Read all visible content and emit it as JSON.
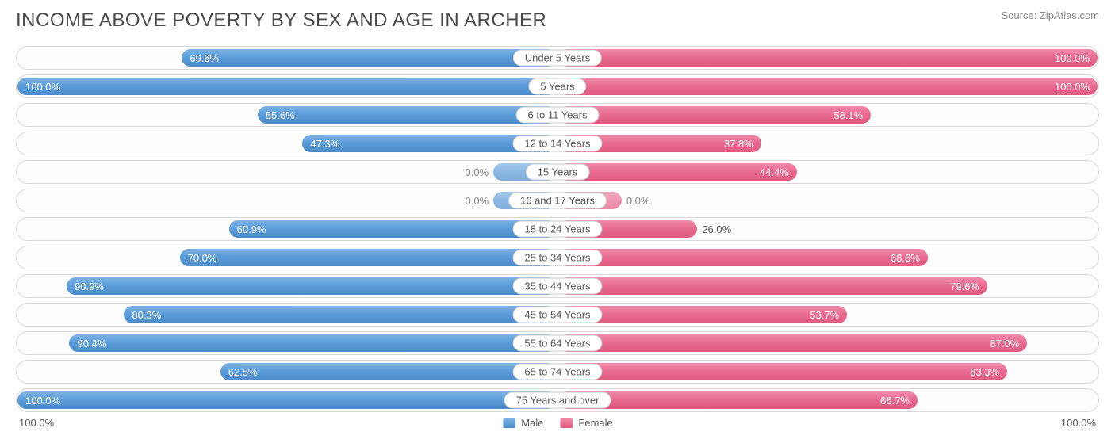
{
  "title": "INCOME ABOVE POVERTY BY SEX AND AGE IN ARCHER",
  "source": "Source: ZipAtlas.com",
  "chart": {
    "type": "diverging-bar",
    "male_color": "#5a9bd8",
    "female_color": "#e86a8f",
    "background": "#ffffff",
    "row_border": "#d8d8d8",
    "text_color": "#555555",
    "title_color": "#4a4a4a",
    "min_bar_pct": 12,
    "label_inside_threshold": 30,
    "axis_left": "100.0%",
    "axis_right": "100.0%",
    "legend": {
      "male": "Male",
      "female": "Female"
    },
    "rows": [
      {
        "category": "Under 5 Years",
        "male": 69.6,
        "female": 100.0
      },
      {
        "category": "5 Years",
        "male": 100.0,
        "female": 100.0
      },
      {
        "category": "6 to 11 Years",
        "male": 55.6,
        "female": 58.1
      },
      {
        "category": "12 to 14 Years",
        "male": 47.3,
        "female": 37.8
      },
      {
        "category": "15 Years",
        "male": 0.0,
        "female": 44.4
      },
      {
        "category": "16 and 17 Years",
        "male": 0.0,
        "female": 0.0
      },
      {
        "category": "18 to 24 Years",
        "male": 60.9,
        "female": 26.0
      },
      {
        "category": "25 to 34 Years",
        "male": 70.0,
        "female": 68.6
      },
      {
        "category": "35 to 44 Years",
        "male": 90.9,
        "female": 79.6
      },
      {
        "category": "45 to 54 Years",
        "male": 80.3,
        "female": 53.7
      },
      {
        "category": "55 to 64 Years",
        "male": 90.4,
        "female": 87.0
      },
      {
        "category": "65 to 74 Years",
        "male": 62.5,
        "female": 83.3
      },
      {
        "category": "75 Years and over",
        "male": 100.0,
        "female": 66.7
      }
    ]
  }
}
